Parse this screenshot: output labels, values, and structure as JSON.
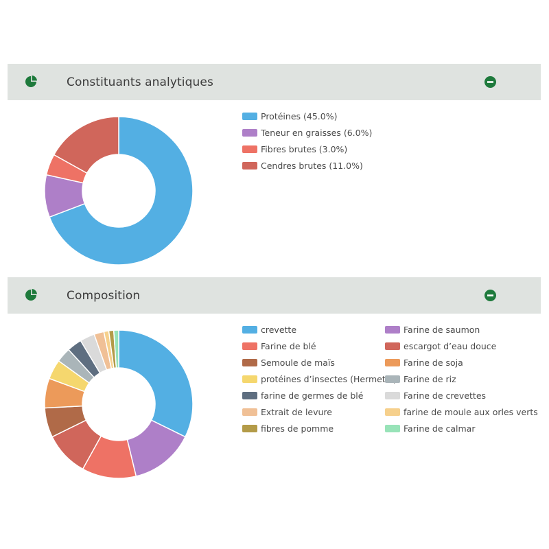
{
  "sections": [
    {
      "title": "Constituants analytiques",
      "icon": "pie-chart-icon",
      "collapse_icon": "minus-circle-icon"
    },
    {
      "title": "Composition",
      "icon": "pie-chart-icon",
      "collapse_icon": "minus-circle-icon"
    }
  ],
  "colors": {
    "header_bg": "#dfe3e0",
    "icon_green": "#1e7a3c"
  },
  "chart_data": [
    {
      "type": "pie",
      "donut": true,
      "title": "",
      "legend_placement": "right",
      "slices": [
        {
          "label": "Protéines (45.0%)",
          "value": 45.0,
          "color": "#53afe3"
        },
        {
          "label": "Teneur en graisses (6.0%)",
          "value": 6.0,
          "color": "#ae7fc8"
        },
        {
          "label": "Fibres brutes (3.0%)",
          "value": 3.0,
          "color": "#ee7265"
        },
        {
          "label": "Cendres brutes (11.0%)",
          "value": 11.0,
          "color": "#d0665b"
        }
      ]
    },
    {
      "type": "pie",
      "donut": true,
      "title": "",
      "legend_placement": "right",
      "slices": [
        {
          "label": "crevette",
          "value": 30.0,
          "color": "#53afe3"
        },
        {
          "label": "Farine de saumon",
          "value": 13.0,
          "color": "#ae7fc8"
        },
        {
          "label": "Farine de blé",
          "value": 11.0,
          "color": "#ee7265"
        },
        {
          "label": "escargot d’eau douce",
          "value": 9.0,
          "color": "#d0665b"
        },
        {
          "label": "Semoule de maïs",
          "value": 6.0,
          "color": "#b06a48"
        },
        {
          "label": "Farine de soja",
          "value": 6.0,
          "color": "#ec9a5a"
        },
        {
          "label": "protéines d’insectes (Hermetia)",
          "value": 4.0,
          "color": "#f5d76e"
        },
        {
          "label": "Farine de riz",
          "value": 3.0,
          "color": "#aab5b9"
        },
        {
          "label": "farine de germes de blé",
          "value": 3.0,
          "color": "#5e6e80"
        },
        {
          "label": "Farine de crevettes",
          "value": 3.0,
          "color": "#dadada"
        },
        {
          "label": "Extrait de levure",
          "value": 2.0,
          "color": "#f0c096"
        },
        {
          "label": "farine de moule aux orles verts",
          "value": 1.0,
          "color": "#f6d08c"
        },
        {
          "label": "fibres de pomme",
          "value": 1.0,
          "color": "#b39b48"
        },
        {
          "label": "Farine de calmar",
          "value": 1.0,
          "color": "#98e3b8"
        }
      ]
    }
  ]
}
